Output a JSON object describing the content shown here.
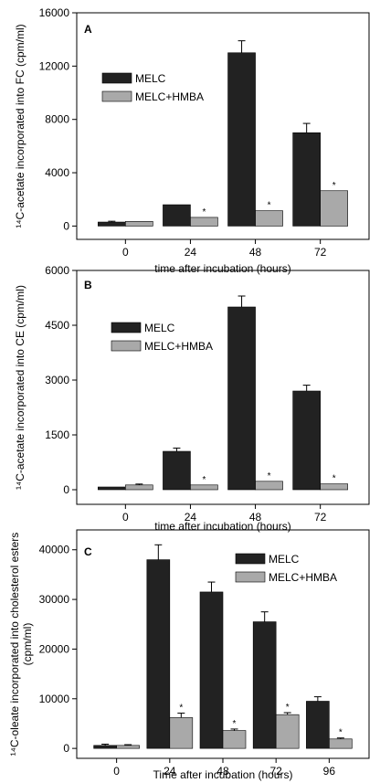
{
  "colors": {
    "dark": "#222222",
    "light": "#a9a9a9"
  },
  "chart_data": [
    {
      "panel": "A",
      "type": "bar",
      "categories": [
        "0",
        "24",
        "48",
        "72"
      ],
      "series": [
        {
          "name": "MELC",
          "values": [
            300,
            1600,
            13000,
            7000
          ],
          "errors": [
            60,
            0,
            900,
            700
          ]
        },
        {
          "name": "MELC+HMBA",
          "values": [
            350,
            650,
            1150,
            2650
          ],
          "errors": [
            0,
            0,
            0,
            0
          ]
        }
      ],
      "significance": [
        "",
        "*",
        "*",
        "*"
      ],
      "xlabel": "time after incubation (hours)",
      "ylabel": "¹⁴C-acetate incorporated into FC (cpm/ml)",
      "ylim": [
        -1000,
        16000
      ],
      "yticks": [
        0,
        4000,
        8000,
        12000,
        16000
      ],
      "legend": "top-left"
    },
    {
      "panel": "B",
      "type": "bar",
      "categories": [
        "0",
        "24",
        "48",
        "72"
      ],
      "series": [
        {
          "name": "MELC",
          "values": [
            75,
            1050,
            5000,
            2700
          ],
          "errors": [
            0,
            90,
            300,
            160
          ]
        },
        {
          "name": "MELC+HMBA",
          "values": [
            130,
            130,
            230,
            160
          ],
          "errors": [
            25,
            0,
            0,
            0
          ]
        }
      ],
      "significance": [
        "",
        "*",
        "*",
        "*"
      ],
      "xlabel": "time after incubation (hours)",
      "ylabel": "¹⁴C-acetate incorporated into CE (cpm/ml)",
      "ylim": [
        -400,
        6000
      ],
      "yticks": [
        0,
        1500,
        3000,
        4500,
        6000
      ],
      "legend": "top-left"
    },
    {
      "panel": "C",
      "type": "bar",
      "categories": [
        "0",
        "24",
        "48",
        "72",
        "96"
      ],
      "series": [
        {
          "name": "MELC",
          "values": [
            600,
            38000,
            31500,
            25500,
            9500
          ],
          "errors": [
            250,
            3000,
            2000,
            2000,
            900
          ]
        },
        {
          "name": "MELC+HMBA",
          "values": [
            600,
            6200,
            3600,
            6800,
            1900
          ],
          "errors": [
            150,
            900,
            300,
            400,
            200
          ]
        }
      ],
      "significance": [
        "",
        "*",
        "*",
        "*",
        "*"
      ],
      "xlabel": "Time after incubation (hours)",
      "ylabel": "¹⁴C-oleate incorporated into cholesterol esters (cpm/ml)",
      "ylim": [
        -2000,
        44000
      ],
      "yticks": [
        0,
        10000,
        20000,
        30000,
        40000
      ],
      "legend": "top-right"
    }
  ]
}
